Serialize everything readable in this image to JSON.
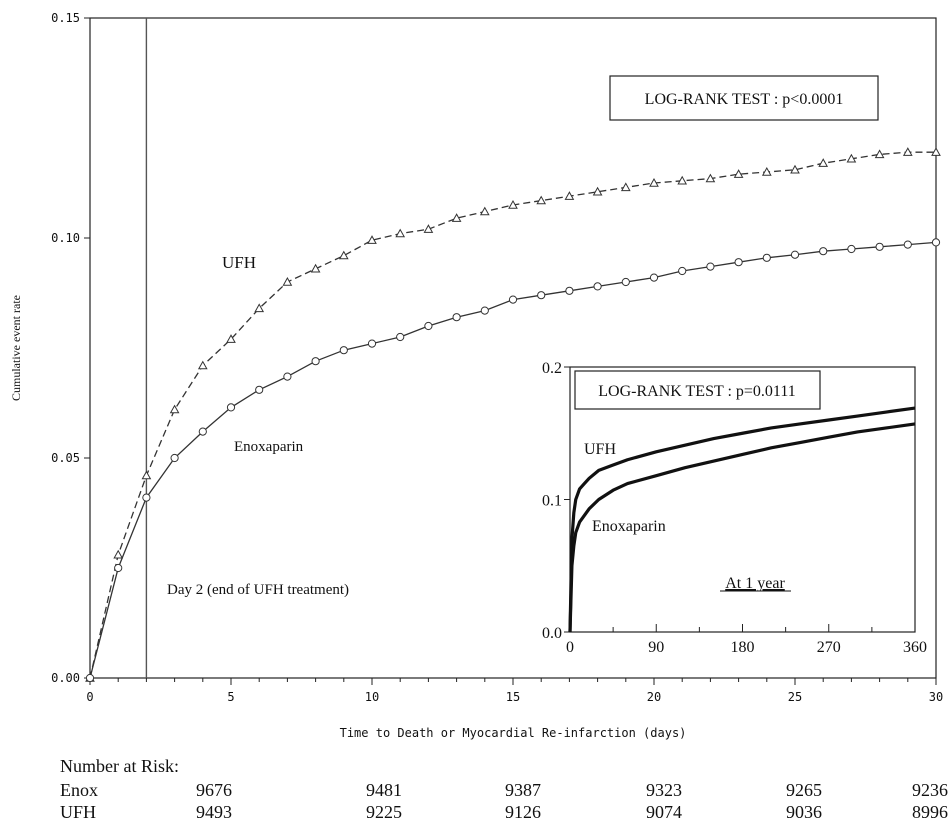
{
  "chart_data": {
    "main": {
      "type": "line",
      "xlabel": "Time to Death or Myocardial Re-infarction (days)",
      "ylabel": "Cumulative event rate",
      "xlim": [
        0,
        30
      ],
      "ylim": [
        0,
        0.15
      ],
      "x_ticks": [
        "0",
        "5",
        "10",
        "15",
        "20",
        "25",
        "30"
      ],
      "y_ticks": [
        "0.00",
        "0.05",
        "0.10",
        "0.15"
      ],
      "grid": false,
      "vertical_line_x": 2,
      "vertical_line_label": "Day 2 (end of UFH treatment)",
      "test_box": "LOG-RANK TEST : p<0.0001",
      "x": [
        0,
        1,
        2,
        3,
        4,
        5,
        6,
        7,
        8,
        9,
        10,
        11,
        12,
        13,
        14,
        15,
        16,
        17,
        18,
        19,
        20,
        21,
        22,
        23,
        24,
        25,
        26,
        27,
        28,
        29,
        30
      ],
      "series": [
        {
          "name": "UFH",
          "line_style": "dashed",
          "marker": "triangle",
          "values": [
            0.0,
            0.028,
            0.046,
            0.061,
            0.071,
            0.077,
            0.084,
            0.09,
            0.093,
            0.096,
            0.0995,
            0.101,
            0.102,
            0.1045,
            0.106,
            0.1075,
            0.1085,
            0.1095,
            0.1105,
            0.1115,
            0.1125,
            0.113,
            0.1135,
            0.1145,
            0.115,
            0.1155,
            0.117,
            0.118,
            0.119,
            0.1195,
            0.1195
          ]
        },
        {
          "name": "Enoxaparin",
          "line_style": "solid",
          "marker": "circle",
          "values": [
            0.0,
            0.025,
            0.041,
            0.05,
            0.056,
            0.0615,
            0.0655,
            0.0685,
            0.072,
            0.0745,
            0.076,
            0.0775,
            0.08,
            0.082,
            0.0835,
            0.086,
            0.087,
            0.088,
            0.089,
            0.09,
            0.091,
            0.0925,
            0.0935,
            0.0945,
            0.0955,
            0.0962,
            0.097,
            0.0975,
            0.098,
            0.0985,
            0.099
          ]
        }
      ]
    },
    "inset": {
      "type": "line",
      "title": "At 1 year",
      "xlim": [
        0,
        360
      ],
      "ylim": [
        0,
        0.2
      ],
      "x_ticks": [
        "0",
        "90",
        "180",
        "270",
        "360"
      ],
      "y_ticks": [
        "0.0",
        "0.1",
        "0.2"
      ],
      "test_box": "LOG-RANK TEST : p=0.0111",
      "x": [
        0,
        2,
        4,
        6,
        10,
        15,
        20,
        30,
        45,
        60,
        90,
        120,
        150,
        180,
        210,
        240,
        270,
        300,
        330,
        360
      ],
      "series": [
        {
          "name": "UFH",
          "values": [
            0.0,
            0.07,
            0.09,
            0.1,
            0.108,
            0.112,
            0.116,
            0.122,
            0.126,
            0.13,
            0.136,
            0.141,
            0.146,
            0.15,
            0.154,
            0.157,
            0.16,
            0.163,
            0.166,
            0.169
          ]
        },
        {
          "name": "Enoxaparin",
          "values": [
            0.0,
            0.05,
            0.065,
            0.075,
            0.083,
            0.088,
            0.093,
            0.1,
            0.107,
            0.112,
            0.118,
            0.124,
            0.129,
            0.134,
            0.139,
            0.143,
            0.147,
            0.151,
            0.154,
            0.157
          ]
        }
      ]
    }
  },
  "risk_table": {
    "title": "Number at Risk:",
    "rows": [
      {
        "label": "Enox",
        "values": [
          "9676",
          "9481",
          "9387",
          "9323",
          "9265",
          "9236"
        ]
      },
      {
        "label": "UFH",
        "values": [
          "9493",
          "9225",
          "9126",
          "9074",
          "9036",
          "8996"
        ]
      }
    ]
  }
}
